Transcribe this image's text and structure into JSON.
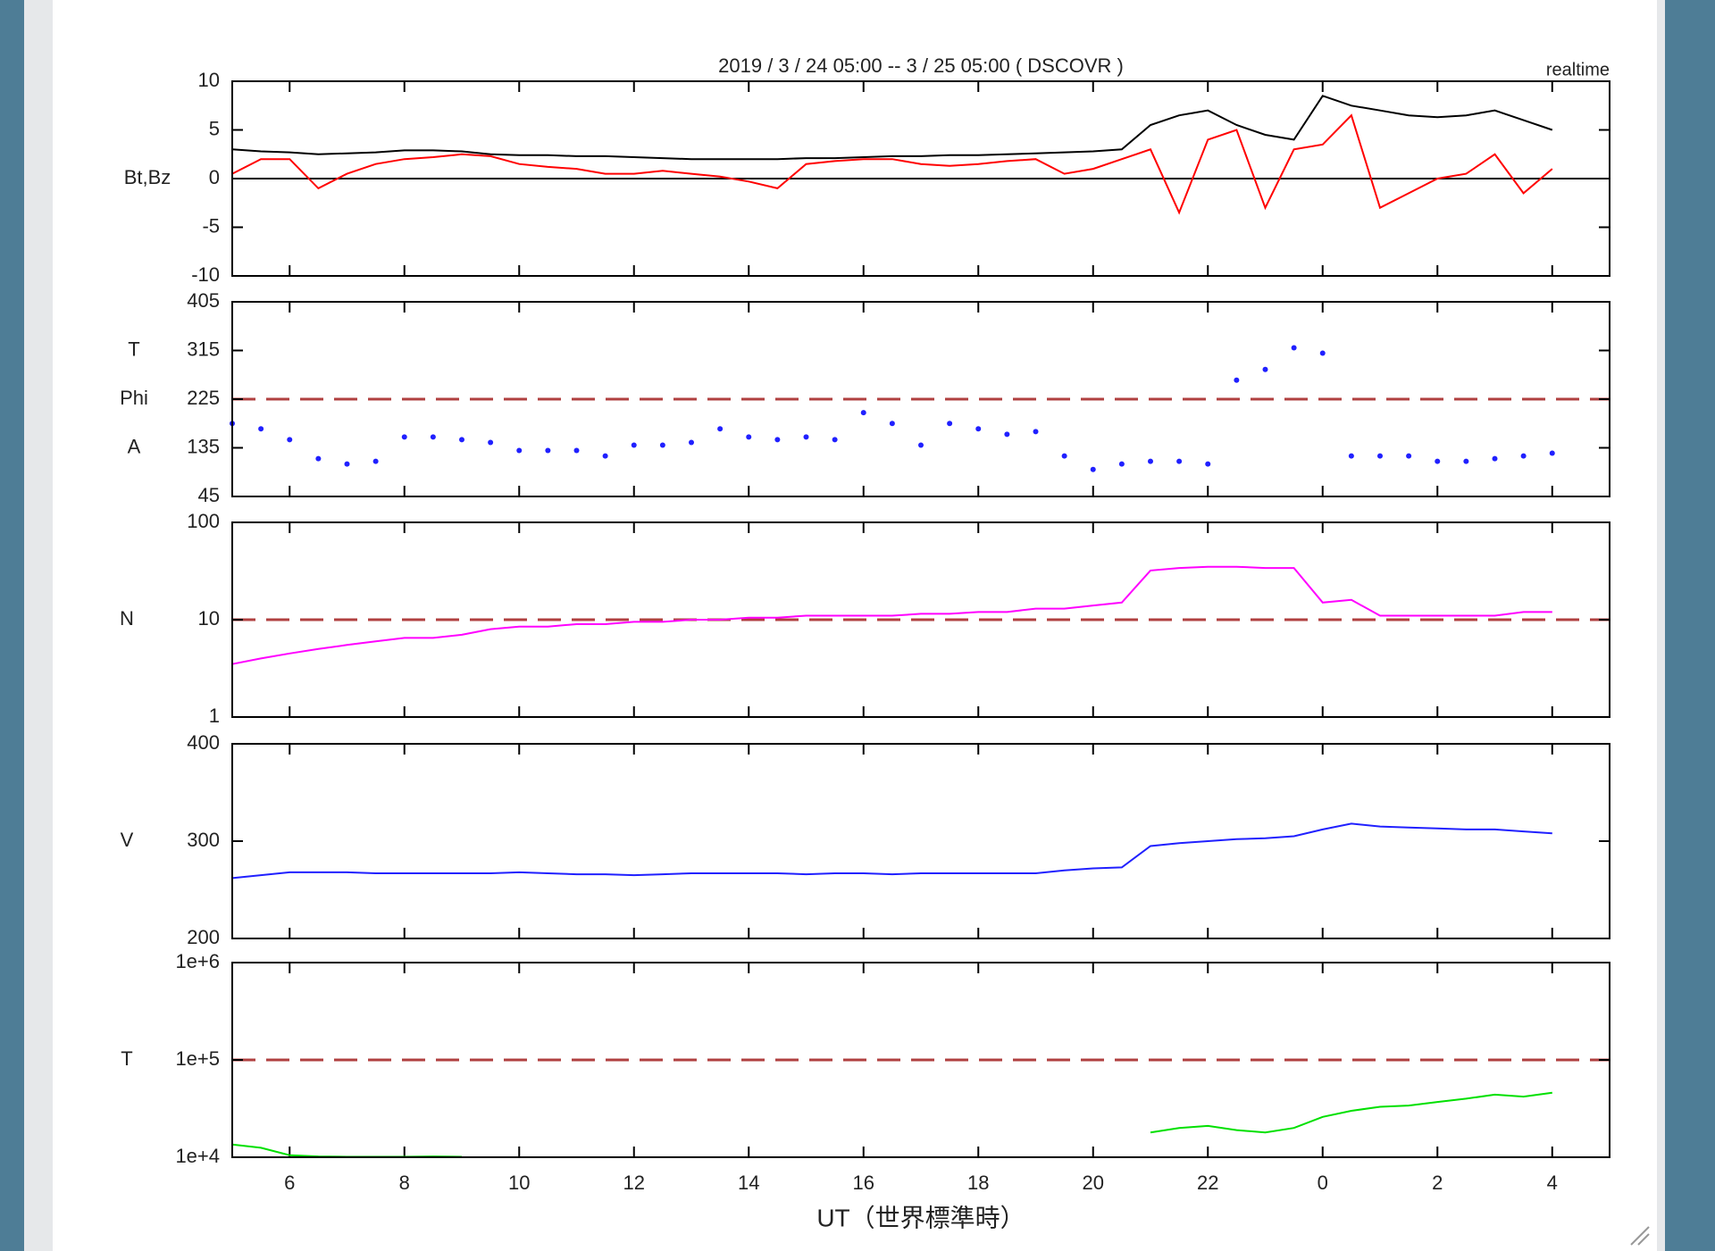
{
  "chart_data": [
    {
      "type": "line",
      "title": "2019 / 3 / 24   05:00 -- 3 / 25   05:00 ( DSCOVR )",
      "subtitle": "realtime",
      "ylabel": [
        "Bt,Bz"
      ],
      "xlim": [
        5,
        29
      ],
      "xticks": [
        6,
        8,
        10,
        12,
        14,
        16,
        18,
        20,
        22,
        {
          "value": 24,
          "label": "0"
        },
        {
          "value": 26,
          "label": "2"
        },
        {
          "value": 28,
          "label": "4"
        }
      ],
      "ylim": [
        -10,
        10
      ],
      "yticks": [
        -10,
        -5,
        0,
        5,
        10
      ],
      "ref_lines": [
        {
          "value": 0,
          "color": "#000000",
          "dashed": false
        }
      ],
      "x": [
        5,
        5.5,
        6,
        6.5,
        7,
        7.5,
        8,
        8.5,
        9,
        9.5,
        10,
        10.5,
        11,
        11.5,
        12,
        12.5,
        13,
        13.5,
        14,
        14.5,
        15,
        15.5,
        16,
        16.5,
        17,
        17.5,
        18,
        18.5,
        19,
        19.5,
        20,
        20.5,
        21,
        21.5,
        22,
        22.5,
        23,
        23.5,
        24,
        24.5,
        25,
        25.5,
        26,
        26.5,
        27,
        27.5,
        28
      ],
      "series": [
        {
          "name": "Bt",
          "color": "#000000",
          "values": [
            3,
            2.8,
            2.7,
            2.5,
            2.6,
            2.7,
            2.9,
            2.9,
            2.8,
            2.5,
            2.4,
            2.4,
            2.3,
            2.3,
            2.2,
            2.1,
            2.0,
            2.0,
            2.0,
            2.0,
            2.1,
            2.1,
            2.2,
            2.3,
            2.3,
            2.4,
            2.4,
            2.5,
            2.6,
            2.7,
            2.8,
            3.0,
            5.5,
            6.5,
            7.0,
            5.5,
            4.5,
            4.0,
            8.5,
            7.5,
            7.0,
            6.5,
            6.3,
            6.5,
            7.0,
            6.0,
            5.0
          ]
        },
        {
          "name": "Bz",
          "color": "#ff0000",
          "values": [
            0.5,
            2,
            2,
            -1,
            0.5,
            1.5,
            2,
            2.2,
            2.5,
            2.3,
            1.5,
            1.2,
            1.0,
            0.5,
            0.5,
            0.8,
            0.5,
            0.2,
            -0.3,
            -1,
            1.5,
            1.8,
            2.0,
            2.0,
            1.5,
            1.3,
            1.5,
            1.8,
            2.0,
            0.5,
            1.0,
            2.0,
            3.0,
            -3.5,
            4,
            5,
            -3,
            3,
            3.5,
            6.5,
            -3,
            -1.5,
            0,
            0.5,
            2.5,
            -1.5,
            1.0
          ]
        }
      ]
    },
    {
      "type": "scatter",
      "ylabel": [
        "T",
        "Phi",
        "A"
      ],
      "xlim": [
        5,
        29
      ],
      "xticks": [
        6,
        8,
        10,
        12,
        14,
        16,
        18,
        20,
        22,
        24,
        26,
        28
      ],
      "ylim": [
        45,
        405
      ],
      "yticks": [
        45,
        135,
        225,
        315,
        405
      ],
      "ref_lines": [
        {
          "value": 225,
          "color": "#b04040",
          "dashed": true
        }
      ],
      "x": [
        5,
        5.5,
        6,
        6.5,
        7,
        7.5,
        8,
        8.5,
        9,
        9.5,
        10,
        10.5,
        11,
        11.5,
        12,
        12.5,
        13,
        13.5,
        14,
        14.5,
        15,
        15.5,
        16,
        16.5,
        17,
        17.5,
        18,
        18.5,
        19,
        19.5,
        20,
        20.5,
        21,
        21.5,
        22,
        22.5,
        23,
        23.5,
        24,
        24.5,
        25,
        25.5,
        26,
        26.5,
        27,
        27.5,
        28
      ],
      "series": [
        {
          "name": "Phi",
          "color": "#2020ff",
          "values": [
            180,
            170,
            150,
            115,
            105,
            110,
            155,
            155,
            150,
            145,
            130,
            130,
            130,
            120,
            140,
            140,
            145,
            170,
            155,
            150,
            155,
            150,
            200,
            180,
            140,
            180,
            170,
            160,
            165,
            120,
            95,
            105,
            110,
            110,
            105,
            260,
            280,
            320,
            310,
            120,
            120,
            120,
            110,
            110,
            115,
            120,
            125
          ]
        }
      ]
    },
    {
      "type": "line",
      "ylabel": [
        "N"
      ],
      "log_y": true,
      "xlim": [
        5,
        29
      ],
      "xticks": [
        6,
        8,
        10,
        12,
        14,
        16,
        18,
        20,
        22,
        24,
        26,
        28
      ],
      "ylim": [
        1,
        100
      ],
      "yticks": [
        1,
        10,
        100
      ],
      "ref_lines": [
        {
          "value": 10,
          "color": "#b04040",
          "dashed": true
        }
      ],
      "x": [
        5,
        5.5,
        6,
        6.5,
        7,
        7.5,
        8,
        8.5,
        9,
        9.5,
        10,
        10.5,
        11,
        11.5,
        12,
        12.5,
        13,
        13.5,
        14,
        14.5,
        15,
        15.5,
        16,
        16.5,
        17,
        17.5,
        18,
        18.5,
        19,
        19.5,
        20,
        20.5,
        21,
        21.5,
        22,
        22.5,
        23,
        23.5,
        24,
        24.5,
        25,
        25.5,
        26,
        26.5,
        27,
        27.5,
        28
      ],
      "series": [
        {
          "name": "N",
          "color": "#ff00ff",
          "values": [
            3.5,
            4,
            4.5,
            5,
            5.5,
            6,
            6.5,
            6.5,
            7,
            8,
            8.5,
            8.5,
            9,
            9,
            9.5,
            9.5,
            10,
            10,
            10.5,
            10.5,
            11,
            11,
            11,
            11,
            11.5,
            11.5,
            12,
            12,
            13,
            13,
            14,
            15,
            32,
            34,
            35,
            35,
            34,
            34,
            15,
            16,
            11,
            11,
            11,
            11,
            11,
            12,
            12
          ]
        }
      ]
    },
    {
      "type": "line",
      "ylabel": [
        "V"
      ],
      "xlim": [
        5,
        29
      ],
      "xticks": [
        6,
        8,
        10,
        12,
        14,
        16,
        18,
        20,
        22,
        24,
        26,
        28
      ],
      "ylim": [
        200,
        400
      ],
      "yticks": [
        200,
        300,
        400
      ],
      "ref_lines": [],
      "x": [
        5,
        5.5,
        6,
        6.5,
        7,
        7.5,
        8,
        8.5,
        9,
        9.5,
        10,
        10.5,
        11,
        11.5,
        12,
        12.5,
        13,
        13.5,
        14,
        14.5,
        15,
        15.5,
        16,
        16.5,
        17,
        17.5,
        18,
        18.5,
        19,
        19.5,
        20,
        20.5,
        21,
        21.5,
        22,
        22.5,
        23,
        23.5,
        24,
        24.5,
        25,
        25.5,
        26,
        26.5,
        27,
        27.5,
        28
      ],
      "series": [
        {
          "name": "V",
          "color": "#2020ff",
          "values": [
            262,
            265,
            268,
            268,
            268,
            267,
            267,
            267,
            267,
            267,
            268,
            267,
            266,
            266,
            265,
            266,
            267,
            267,
            267,
            267,
            266,
            267,
            267,
            266,
            267,
            267,
            267,
            267,
            267,
            270,
            272,
            273,
            295,
            298,
            300,
            302,
            303,
            305,
            312,
            318,
            315,
            314,
            313,
            312,
            312,
            310,
            308
          ]
        }
      ]
    },
    {
      "type": "line",
      "ylabel": [
        "T"
      ],
      "log_y": true,
      "xlabel": "UT（世界標準時）",
      "xlim": [
        5,
        29
      ],
      "xticks": [
        6,
        8,
        10,
        12,
        14,
        16,
        18,
        20,
        22,
        {
          "value": 24,
          "label": "0"
        },
        {
          "value": 26,
          "label": "2"
        },
        {
          "value": 28,
          "label": "4"
        }
      ],
      "ylim": [
        10000,
        1000000
      ],
      "yticks": [
        {
          "value": 10000,
          "label": "1e+4"
        },
        {
          "value": 100000,
          "label": "1e+5"
        },
        {
          "value": 1000000,
          "label": "1e+6"
        }
      ],
      "ref_lines": [
        {
          "value": 100000,
          "color": "#b04040",
          "dashed": true
        }
      ],
      "x": [
        5,
        5.5,
        6,
        6.5,
        7,
        7.5,
        8,
        8.5,
        9,
        9.5,
        10,
        10.5,
        11,
        11.5,
        12,
        12.5,
        13,
        13.5,
        14,
        14.5,
        15,
        15.5,
        16,
        16.5,
        17,
        17.5,
        18,
        18.5,
        19,
        19.5,
        20,
        20.5,
        21,
        21.5,
        22,
        22.5,
        23,
        23.5,
        24,
        24.5,
        25,
        25.5,
        26,
        26.5,
        27,
        27.5,
        28
      ],
      "series": [
        {
          "name": "T",
          "color": "#00e000",
          "values": [
            13500,
            12500,
            10500,
            10200,
            10100,
            10100,
            10100,
            10200,
            10100,
            null,
            null,
            null,
            null,
            null,
            null,
            null,
            null,
            null,
            null,
            null,
            null,
            null,
            null,
            null,
            null,
            null,
            null,
            null,
            null,
            null,
            null,
            null,
            18000,
            20000,
            21000,
            19000,
            18000,
            20000,
            26000,
            30000,
            33000,
            34000,
            37000,
            40000,
            44000,
            42000,
            46000
          ]
        }
      ]
    }
  ]
}
